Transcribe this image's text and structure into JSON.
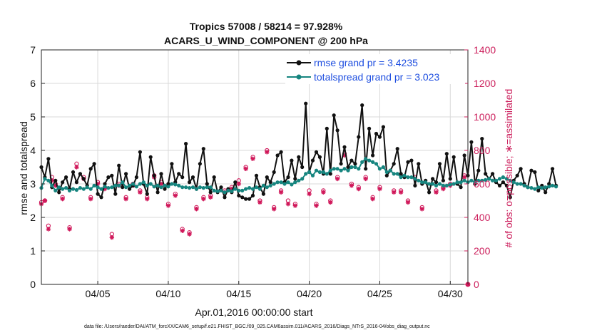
{
  "chart_data": {
    "type": "line",
    "title_line1": "Tropics 57008 / 58214 = 97.928%",
    "title_line2": "ACARS_U_WIND_COMPONENT @ 200 hPa",
    "xlabel": "Apr.01,2016 00:00:00 start",
    "ylabel_left": "rmse and totalspread",
    "ylabel_right": "# of obs: o=possible; ∗=assimilated",
    "footer": "data file: /Users/raeder/DAI/ATM_forcXX/CAM6_setup/f.e21.FHIST_BGC.f09_025.CAM6assim.011/ACARS_2016/Diags_NTrS_2016-04/obs_diag_output.nc",
    "xlim": [
      1.0,
      31.25
    ],
    "ylim_left": [
      0,
      7
    ],
    "ylim_right": [
      0,
      1400
    ],
    "yticks_left": [
      "0",
      "1",
      "2",
      "3",
      "4",
      "5",
      "6",
      "7"
    ],
    "yticks_right": [
      "0",
      "200",
      "400",
      "600",
      "800",
      "1000",
      "1200",
      "1400"
    ],
    "xticks": [
      {
        "value": 5,
        "label": "04/05"
      },
      {
        "value": 10,
        "label": "04/10"
      },
      {
        "value": 15,
        "label": "04/15"
      },
      {
        "value": 20,
        "label": "04/20"
      },
      {
        "value": 25,
        "label": "04/25"
      },
      {
        "value": 30,
        "label": "04/30"
      }
    ],
    "x_start": 1.0,
    "x_step": 0.25,
    "grid": true,
    "legend_position": "top-right",
    "colors": {
      "rmse": "#111111",
      "spread": "#16857f",
      "obs": "#d0185a",
      "right_axis": "#cc1f5c",
      "legend_text": "#1f4fe0",
      "grid": "#d9d9d9"
    },
    "series": [
      {
        "name": "rmse grand pr = 3.4235",
        "key": "rmse",
        "values": [
          3.5,
          3.2,
          3.75,
          2.9,
          3.1,
          2.75,
          3.05,
          3.2,
          2.85,
          3.35,
          3.05,
          3.3,
          3.15,
          2.95,
          3.45,
          3.6,
          2.7,
          2.6,
          3.0,
          3.2,
          3.25,
          2.7,
          3.55,
          2.9,
          3.3,
          2.85,
          2.95,
          3.2,
          3.95,
          3.0,
          2.7,
          3.8,
          3.25,
          2.75,
          3.3,
          2.85,
          3.0,
          3.6,
          3.05,
          3.3,
          3.2,
          4.2,
          3.05,
          3.2,
          2.85,
          3.6,
          4.05,
          3.0,
          2.75,
          3.2,
          2.75,
          2.9,
          2.6,
          2.85,
          2.75,
          3.05,
          2.65,
          2.6,
          2.55,
          2.55,
          2.65,
          3.25,
          2.9,
          2.7,
          3.2,
          3.05,
          3.35,
          3.85,
          3.95,
          3.05,
          3.2,
          3.7,
          3.15,
          3.8,
          3.5,
          5.4,
          3.35,
          3.7,
          3.95,
          3.8,
          3.3,
          4.65,
          3.3,
          5.05,
          4.6,
          3.6,
          4.1,
          3.5,
          3.7,
          3.6,
          4.4,
          5.35,
          3.45,
          4.65,
          3.85,
          4.5,
          4.4,
          4.7,
          3.25,
          3.4,
          3.6,
          4.05,
          3.3,
          3.2,
          3.65,
          3.7,
          2.95,
          3.6,
          3.0,
          3.1,
          2.75,
          3.15,
          3.05,
          3.6,
          3.1,
          3.9,
          3.15,
          3.8,
          3.0,
          2.9,
          3.85,
          3.25,
          4.25,
          3.0,
          3.4,
          4.35,
          3.3,
          3.15,
          3.3,
          3.05,
          2.95,
          3.05,
          2.95,
          2.6,
          3.1,
          3.25,
          3.45,
          3.0,
          2.9,
          3.4,
          3.35,
          2.8,
          2.95,
          2.75,
          3.0,
          3.45,
          2.95
        ]
      },
      {
        "name": "totalspread grand pr = 3.023",
        "key": "spread",
        "values": [
          2.88,
          3.15,
          3.1,
          2.95,
          2.8,
          2.9,
          2.85,
          2.88,
          2.8,
          2.85,
          2.82,
          2.88,
          2.85,
          2.9,
          2.85,
          2.95,
          2.9,
          2.85,
          2.92,
          2.88,
          2.9,
          2.95,
          2.95,
          3.05,
          2.9,
          2.95,
          3.0,
          2.92,
          3.0,
          3.05,
          2.95,
          3.0,
          2.92,
          2.95,
          2.9,
          2.95,
          2.92,
          3.0,
          2.98,
          2.95,
          2.9,
          2.9,
          2.88,
          2.9,
          2.85,
          2.9,
          2.88,
          2.9,
          2.9,
          2.8,
          2.78,
          2.8,
          2.75,
          2.8,
          2.78,
          2.85,
          2.8,
          2.8,
          2.85,
          2.88,
          2.85,
          2.9,
          2.85,
          2.95,
          2.9,
          2.95,
          3.0,
          3.05,
          3.05,
          3.0,
          3.05,
          2.98,
          3.05,
          3.1,
          3.15,
          3.3,
          3.35,
          3.25,
          3.4,
          3.35,
          3.35,
          3.3,
          3.4,
          3.45,
          3.45,
          3.4,
          3.45,
          3.4,
          3.5,
          3.5,
          3.45,
          3.65,
          3.75,
          3.7,
          3.65,
          3.6,
          3.45,
          3.5,
          3.35,
          3.4,
          3.3,
          3.3,
          3.2,
          3.25,
          3.2,
          3.2,
          3.15,
          3.1,
          3.05,
          3.05,
          3.0,
          3.0,
          2.95,
          3.0,
          2.95,
          2.95,
          2.98,
          3.0,
          3.05,
          3.05,
          3.1,
          3.05,
          3.1,
          3.05,
          3.1,
          3.1,
          3.12,
          3.15,
          3.1,
          3.1,
          3.15,
          3.2,
          3.15,
          3.1,
          3.05,
          3.0,
          3.0,
          2.95,
          2.9,
          2.88,
          2.85,
          2.9,
          2.88,
          2.9,
          2.92,
          2.95,
          2.92
        ]
      }
    ],
    "obs_possible": [
      [
        1.0,
        490
      ],
      [
        1.25,
        500
      ],
      [
        1.5,
        350
      ],
      [
        1.75,
        640
      ],
      [
        2.0,
        600
      ],
      [
        2.5,
        520
      ],
      [
        3.0,
        340
      ],
      [
        3.5,
        720
      ],
      [
        4.0,
        640
      ],
      [
        4.5,
        520
      ],
      [
        5.0,
        610
      ],
      [
        5.5,
        580
      ],
      [
        6.0,
        300
      ],
      [
        6.5,
        600
      ],
      [
        7.0,
        520
      ],
      [
        7.5,
        600
      ],
      [
        8.0,
        560
      ],
      [
        8.5,
        520
      ],
      [
        9.0,
        650
      ],
      [
        9.5,
        610
      ],
      [
        10.0,
        480
      ],
      [
        10.5,
        540
      ],
      [
        11.0,
        330
      ],
      [
        11.5,
        310
      ],
      [
        12.0,
        460
      ],
      [
        12.5,
        520
      ],
      [
        13.0,
        530
      ],
      [
        14.0,
        560
      ],
      [
        14.5,
        580
      ],
      [
        15.0,
        620
      ],
      [
        15.5,
        700
      ],
      [
        16.0,
        760
      ],
      [
        16.5,
        500
      ],
      [
        17.0,
        800
      ],
      [
        17.5,
        460
      ],
      [
        18.0,
        560
      ],
      [
        18.5,
        500
      ],
      [
        19.0,
        480
      ],
      [
        20.0,
        560
      ],
      [
        20.5,
        480
      ],
      [
        21.0,
        560
      ],
      [
        21.5,
        500
      ],
      [
        22.0,
        640
      ],
      [
        22.5,
        780
      ],
      [
        23.0,
        600
      ],
      [
        23.5,
        580
      ],
      [
        24.0,
        640
      ],
      [
        24.5,
        520
      ],
      [
        25.0,
        580
      ],
      [
        26.0,
        560
      ],
      [
        26.5,
        560
      ],
      [
        27.0,
        500
      ],
      [
        27.5,
        640
      ],
      [
        28.0,
        460
      ],
      [
        29.0,
        560
      ],
      [
        29.5,
        580
      ],
      [
        30.0,
        600
      ],
      [
        31.0,
        650
      ]
    ],
    "obs_assimilated": [
      [
        1.0,
        480
      ],
      [
        1.25,
        500
      ],
      [
        1.5,
        330
      ],
      [
        1.75,
        620
      ],
      [
        2.0,
        590
      ],
      [
        2.5,
        510
      ],
      [
        3.0,
        330
      ],
      [
        3.5,
        700
      ],
      [
        4.0,
        630
      ],
      [
        4.5,
        510
      ],
      [
        5.0,
        600
      ],
      [
        5.5,
        570
      ],
      [
        6.0,
        280
      ],
      [
        6.5,
        590
      ],
      [
        7.0,
        510
      ],
      [
        7.5,
        590
      ],
      [
        8.0,
        550
      ],
      [
        8.5,
        510
      ],
      [
        9.0,
        640
      ],
      [
        9.5,
        600
      ],
      [
        10.0,
        470
      ],
      [
        10.5,
        530
      ],
      [
        11.0,
        320
      ],
      [
        11.5,
        300
      ],
      [
        12.0,
        450
      ],
      [
        12.5,
        510
      ],
      [
        13.0,
        520
      ],
      [
        14.0,
        550
      ],
      [
        14.5,
        570
      ],
      [
        15.0,
        600
      ],
      [
        15.5,
        690
      ],
      [
        16.0,
        750
      ],
      [
        16.5,
        490
      ],
      [
        17.0,
        790
      ],
      [
        17.5,
        450
      ],
      [
        18.0,
        550
      ],
      [
        18.5,
        480
      ],
      [
        19.0,
        470
      ],
      [
        20.0,
        540
      ],
      [
        20.5,
        470
      ],
      [
        21.0,
        550
      ],
      [
        21.5,
        490
      ],
      [
        22.0,
        630
      ],
      [
        22.5,
        770
      ],
      [
        23.0,
        590
      ],
      [
        23.5,
        570
      ],
      [
        24.0,
        630
      ],
      [
        24.5,
        510
      ],
      [
        25.0,
        570
      ],
      [
        26.0,
        550
      ],
      [
        26.5,
        550
      ],
      [
        27.0,
        490
      ],
      [
        27.5,
        630
      ],
      [
        28.0,
        450
      ],
      [
        29.0,
        550
      ],
      [
        29.5,
        570
      ],
      [
        30.0,
        590
      ],
      [
        31.0,
        640
      ]
    ]
  }
}
